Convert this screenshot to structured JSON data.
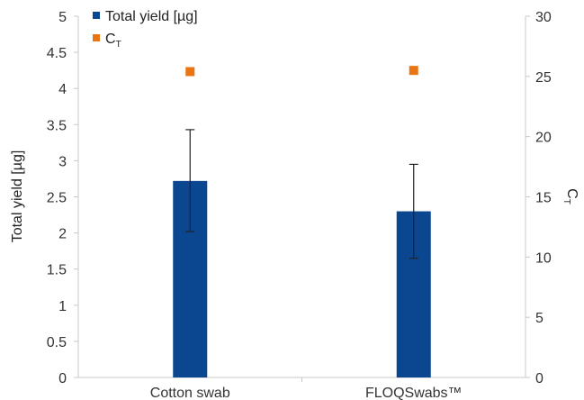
{
  "chart_data": {
    "type": "bar",
    "categories": [
      "Cotton swab",
      "FLOQSwabs™"
    ],
    "series": [
      {
        "name": "Total yield [µg]",
        "axis": "left",
        "kind": "bar",
        "color": "#0b4690",
        "values": [
          2.72,
          2.3
        ],
        "error_low": [
          2.02,
          1.65
        ],
        "error_high": [
          3.43,
          2.95
        ]
      },
      {
        "name_main": "C",
        "name_sub": "T",
        "axis": "right",
        "kind": "marker",
        "color": "#e87511",
        "values": [
          25.4,
          25.5
        ]
      }
    ],
    "ylabel": "Total yield [µg]",
    "ylabel_right_main": "C",
    "ylabel_right_sub": "T",
    "ylim": [
      0,
      5
    ],
    "yticks": [
      "0",
      "0.5",
      "1",
      "1.5",
      "2",
      "2.5",
      "3",
      "3.5",
      "4",
      "4.5",
      "5"
    ],
    "y2lim": [
      0,
      30
    ],
    "y2ticks": [
      "0",
      "5",
      "10",
      "15",
      "20",
      "25",
      "30"
    ],
    "grid": false,
    "legend": "top-left"
  }
}
